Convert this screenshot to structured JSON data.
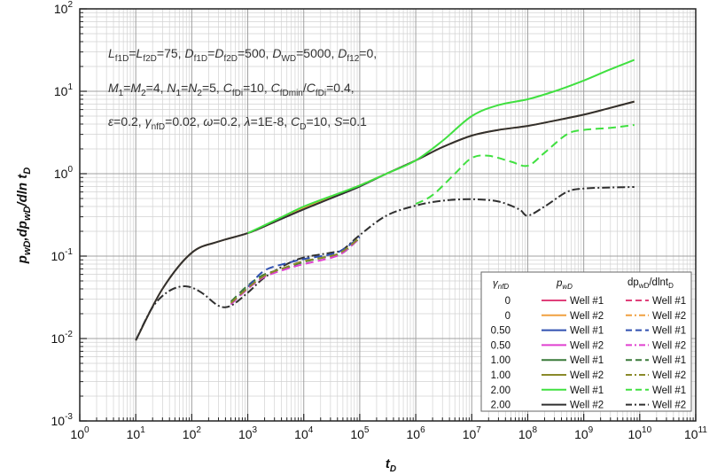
{
  "chart_data": {
    "type": "line",
    "title": "",
    "xlabel": "t_D",
    "ylabel": "p_wD, dp_wD/dln t_D",
    "xscale": "log",
    "yscale": "log",
    "xlim": [
      1,
      100000000000.0
    ],
    "ylim": [
      0.001,
      100
    ],
    "grid": true,
    "x_ticks": [
      {
        "base": "10",
        "exp": "0"
      },
      {
        "base": "10",
        "exp": "1"
      },
      {
        "base": "10",
        "exp": "2"
      },
      {
        "base": "10",
        "exp": "3"
      },
      {
        "base": "10",
        "exp": "4"
      },
      {
        "base": "10",
        "exp": "5"
      },
      {
        "base": "10",
        "exp": "6"
      },
      {
        "base": "10",
        "exp": "7"
      },
      {
        "base": "10",
        "exp": "8"
      },
      {
        "base": "10",
        "exp": "9"
      },
      {
        "base": "10",
        "exp": "10"
      },
      {
        "base": "10",
        "exp": "11"
      }
    ],
    "y_ticks": [
      {
        "base": "10",
        "exp": "-3"
      },
      {
        "base": "10",
        "exp": "-2"
      },
      {
        "base": "10",
        "exp": "-1"
      },
      {
        "base": "10",
        "exp": "0"
      },
      {
        "base": "10",
        "exp": "1"
      },
      {
        "base": "10",
        "exp": "2"
      }
    ],
    "annotations": [
      "Lf1D=Lf2D=75, Df1D=Df2D=500, DWD=5000, Df12=0,",
      "M1=M2=4, N1=N2=5, CfDi=10, CfDmin/CfDi=0.4,",
      "ε=0.2, γnfD=0.02, ω=0.2, λ=1E-8, CD=10, S=0.1"
    ],
    "legend": {
      "placement": "bottom-right",
      "header_gamma": "γnfD",
      "header_p": "pwD",
      "header_dp": "dpwD/dlntD",
      "rows": [
        {
          "gamma": "0",
          "label": "Well #1",
          "color": "#e0407a"
        },
        {
          "gamma": "0",
          "label": "Well #2",
          "color": "#f0a040"
        },
        {
          "gamma": "0.50",
          "label": "Well #1",
          "color": "#3050b0"
        },
        {
          "gamma": "0.50",
          "label": "Well #2",
          "color": "#e040d0"
        },
        {
          "gamma": "1.00",
          "label": "Well #1",
          "color": "#3a7a3a"
        },
        {
          "gamma": "1.00",
          "label": "Well #2",
          "color": "#8a8a2a"
        },
        {
          "gamma": "2.00",
          "label": "Well #1",
          "color": "#40e040"
        },
        {
          "gamma": "2.00",
          "label": "Well #2",
          "color": "#303030"
        }
      ]
    },
    "series": [
      {
        "kind": "pwD",
        "well": "Well #2",
        "gamma": "0",
        "color": "#f0a040",
        "x": [
          10,
          30,
          100,
          300,
          1000,
          3000,
          10000,
          30000,
          100000,
          300000,
          1000000,
          3000000,
          10000000,
          30000000,
          100000000,
          300000000,
          1000000000,
          3000000000,
          8000000000
        ],
        "y": [
          0.0095,
          0.04,
          0.11,
          0.15,
          0.19,
          0.26,
          0.38,
          0.52,
          0.72,
          1.0,
          1.45,
          2.1,
          2.9,
          3.4,
          3.8,
          4.4,
          5.2,
          6.3,
          7.5
        ]
      },
      {
        "kind": "pwD",
        "well": "Well #2",
        "gamma": "2.00",
        "color": "#303030",
        "x": [
          10,
          30,
          100,
          300,
          1000,
          3000,
          10000,
          30000,
          100000,
          300000,
          1000000,
          3000000,
          10000000,
          30000000,
          100000000,
          300000000,
          1000000000,
          3000000000,
          8000000000
        ],
        "y": [
          0.0095,
          0.04,
          0.11,
          0.15,
          0.19,
          0.26,
          0.37,
          0.5,
          0.7,
          1.0,
          1.45,
          2.1,
          2.9,
          3.4,
          3.8,
          4.4,
          5.2,
          6.3,
          7.5
        ]
      },
      {
        "kind": "pwD",
        "well": "Well #1",
        "gamma": "2.00",
        "color": "#40e040",
        "x": [
          1000,
          3000,
          10000,
          30000,
          100000,
          300000,
          1000000,
          3000000,
          10000000,
          30000000,
          100000000,
          300000000,
          1000000000,
          3000000000,
          8000000000
        ],
        "y": [
          0.19,
          0.27,
          0.4,
          0.53,
          0.72,
          1.0,
          1.45,
          2.5,
          5.0,
          6.8,
          8.0,
          10.0,
          13.5,
          18.5,
          24.0
        ]
      },
      {
        "kind": "dpwD",
        "well": "Well #1",
        "gamma": "2.00",
        "color": "#40e040",
        "x": [
          1000000,
          2000000,
          5000000,
          10000000,
          20000000,
          50000000,
          100000000,
          200000000,
          500000000,
          1000000000,
          3000000000,
          8000000000
        ],
        "y": [
          0.43,
          0.55,
          1.0,
          1.55,
          1.65,
          1.4,
          1.25,
          1.8,
          3.0,
          3.4,
          3.6,
          3.9
        ]
      },
      {
        "kind": "dpwD",
        "well": "Well #2",
        "gamma": "2.00",
        "color": "#303030",
        "x": [
          10,
          20,
          40,
          80,
          150,
          300,
          500,
          1000,
          2000,
          5000,
          10000,
          30000,
          50000,
          100000,
          300000,
          1000000,
          3000000,
          10000000,
          30000000,
          70000000,
          100000000,
          200000000,
          500000000,
          1000000000,
          3000000000,
          8000000000
        ],
        "y": [
          0.0095,
          0.024,
          0.038,
          0.043,
          0.036,
          0.025,
          0.025,
          0.036,
          0.055,
          0.08,
          0.096,
          0.11,
          0.12,
          0.18,
          0.31,
          0.41,
          0.47,
          0.49,
          0.46,
          0.37,
          0.31,
          0.4,
          0.6,
          0.66,
          0.68,
          0.69
        ]
      },
      {
        "kind": "dpwD",
        "well": "Well #1",
        "gamma": "1.00",
        "color": "#3a7a3a",
        "x": [
          500,
          1000,
          2000,
          5000,
          10000,
          30000,
          50000,
          100000
        ],
        "y": [
          0.028,
          0.044,
          0.06,
          0.072,
          0.085,
          0.1,
          0.11,
          0.165
        ]
      },
      {
        "kind": "dpwD",
        "well": "Well #1",
        "gamma": "0.50",
        "color": "#3050b0",
        "x": [
          500,
          1000,
          2000,
          5000,
          10000,
          30000,
          50000,
          100000
        ],
        "y": [
          0.026,
          0.042,
          0.067,
          0.082,
          0.092,
          0.105,
          0.12,
          0.17
        ]
      },
      {
        "kind": "dpwD",
        "well": "Well #2",
        "gamma": "0.50",
        "color": "#e040d0",
        "x": [
          500,
          1000,
          2000,
          5000,
          10000,
          30000,
          50000,
          100000
        ],
        "y": [
          0.026,
          0.04,
          0.056,
          0.07,
          0.08,
          0.095,
          0.11,
          0.165
        ]
      },
      {
        "kind": "dpwD",
        "well": "Well #2",
        "gamma": "1.00",
        "color": "#8a8a2a",
        "x": [
          500,
          1000,
          2000,
          5000,
          10000,
          30000,
          50000,
          100000
        ],
        "y": [
          0.027,
          0.041,
          0.058,
          0.074,
          0.087,
          0.1,
          0.115,
          0.168
        ]
      }
    ]
  }
}
